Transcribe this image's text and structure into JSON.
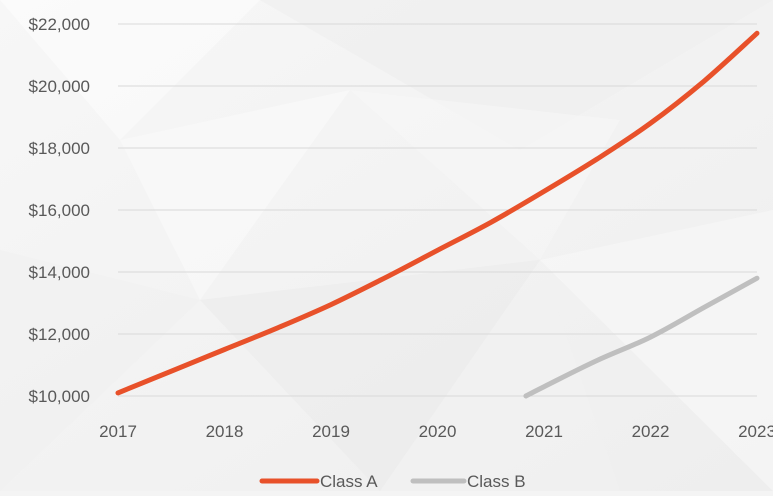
{
  "chart_data": {
    "type": "line",
    "title": "",
    "xlabel": "",
    "ylabel": "",
    "x_ticks": [
      "2017",
      "2018",
      "2019",
      "2020",
      "2021",
      "2022",
      "2023"
    ],
    "y_ticks": [
      "$10,000",
      "$12,000",
      "$14,000",
      "$16,000",
      "$18,000",
      "$20,000",
      "$22,000"
    ],
    "xlim": [
      2017,
      2023
    ],
    "ylim": [
      10000,
      22000
    ],
    "grid": "horizontal",
    "legend_position": "bottom",
    "series": [
      {
        "name": "Class A",
        "color": "#e8512a",
        "points": [
          [
            2017.0,
            10100
          ],
          [
            2017.5,
            10800
          ],
          [
            2018.0,
            11500
          ],
          [
            2018.5,
            12200
          ],
          [
            2019.0,
            12950
          ],
          [
            2019.5,
            13800
          ],
          [
            2020.0,
            14700
          ],
          [
            2020.5,
            15600
          ],
          [
            2021.0,
            16600
          ],
          [
            2021.5,
            17650
          ],
          [
            2022.0,
            18800
          ],
          [
            2022.5,
            20150
          ],
          [
            2023.0,
            21700
          ]
        ]
      },
      {
        "name": "Class B",
        "color": "#bfbfbf",
        "points": [
          [
            2020.83,
            10000
          ],
          [
            2021.0,
            10300
          ],
          [
            2021.5,
            11150
          ],
          [
            2022.0,
            11900
          ],
          [
            2022.5,
            12850
          ],
          [
            2023.0,
            13800
          ]
        ]
      }
    ]
  }
}
